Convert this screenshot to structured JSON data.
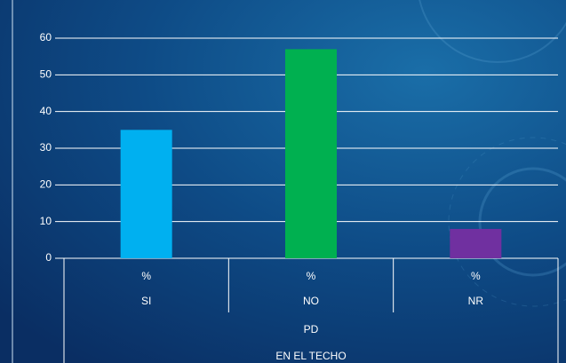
{
  "chart_data": {
    "type": "bar",
    "categories": [
      "SI",
      "NO",
      "NR"
    ],
    "category_sublabels": [
      "%",
      "%",
      "%"
    ],
    "group_label": "PD",
    "axis_label": "EN EL TECHO",
    "series": [
      {
        "values": [
          35,
          57,
          8
        ],
        "colors": [
          "#00b0f0",
          "#00b050",
          "#7030a0"
        ]
      }
    ],
    "ylim": [
      0,
      60
    ],
    "yticks": [
      0,
      10,
      20,
      30,
      40,
      50,
      60
    ],
    "grid": true
  }
}
